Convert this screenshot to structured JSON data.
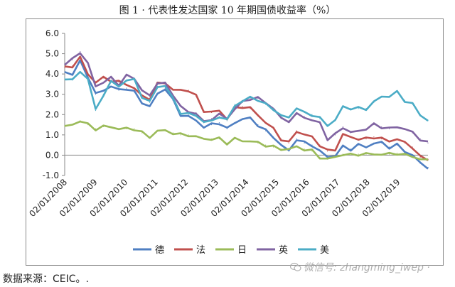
{
  "figure": {
    "title": "图 1 · 代表性发达国家 10 年期国债收益率（%）",
    "source": "数据来源：CEIC。.",
    "watermark": "微信号: zhangming_iwep ·"
  },
  "colors": {
    "德": "#4f7fc2",
    "法": "#c0504d",
    "日": "#9bbb59",
    "英": "#8064a2",
    "美": "#4bacc6"
  },
  "chart_data": {
    "type": "line",
    "title": "",
    "xlabel": "",
    "ylabel": "",
    "ylim": [
      -1.0,
      6.0
    ],
    "y_ticks": [
      "6.0",
      "5.0",
      "4.0",
      "3.0",
      "2.0",
      "1.0",
      "0.0",
      "-1.0"
    ],
    "x_tick_labels": [
      "02/01/2008",
      "02/01/2009",
      "02/01/2010",
      "02/01/2011",
      "02/01/2012",
      "02/01/2013",
      "02/01/2014",
      "02/01/2015",
      "02/01/2016",
      "02/01/2017",
      "02/01/2018",
      "02/01/2019"
    ],
    "x": [
      "2008-01",
      "2008-04",
      "2008-07",
      "2008-10",
      "2009-01",
      "2009-04",
      "2009-07",
      "2009-10",
      "2010-01",
      "2010-04",
      "2010-07",
      "2010-10",
      "2011-01",
      "2011-04",
      "2011-07",
      "2011-10",
      "2012-01",
      "2012-04",
      "2012-07",
      "2012-10",
      "2013-01",
      "2013-04",
      "2013-07",
      "2013-10",
      "2014-01",
      "2014-04",
      "2014-07",
      "2014-10",
      "2015-01",
      "2015-04",
      "2015-07",
      "2015-10",
      "2016-01",
      "2016-04",
      "2016-07",
      "2016-10",
      "2017-01",
      "2017-04",
      "2017-07",
      "2017-10",
      "2018-01",
      "2018-04",
      "2018-07",
      "2018-10",
      "2019-01",
      "2019-04",
      "2019-07",
      "2019-10"
    ],
    "legend": "bottom",
    "grid": false,
    "series": [
      {
        "name": "德",
        "values": [
          4.1,
          4.0,
          4.6,
          3.9,
          3.0,
          3.2,
          3.4,
          3.2,
          3.3,
          3.1,
          2.6,
          2.4,
          3.0,
          3.3,
          2.7,
          2.0,
          1.9,
          1.7,
          1.4,
          1.5,
          1.6,
          1.3,
          1.6,
          1.8,
          1.8,
          1.5,
          1.2,
          0.9,
          0.5,
          0.2,
          0.8,
          0.6,
          0.5,
          0.2,
          -0.1,
          0.0,
          0.4,
          0.3,
          0.5,
          0.4,
          0.6,
          0.6,
          0.4,
          0.5,
          0.2,
          0.0,
          -0.4,
          -0.6
        ]
      },
      {
        "name": "法",
        "values": [
          4.3,
          4.4,
          4.8,
          4.0,
          3.6,
          3.8,
          3.7,
          3.6,
          3.5,
          3.3,
          2.9,
          2.8,
          3.5,
          3.6,
          3.2,
          3.2,
          3.2,
          2.9,
          2.2,
          2.1,
          2.2,
          1.8,
          2.3,
          2.4,
          2.3,
          2.0,
          1.6,
          1.3,
          0.8,
          0.6,
          1.2,
          1.0,
          0.9,
          0.5,
          0.2,
          0.3,
          1.0,
          0.9,
          0.8,
          0.8,
          0.9,
          0.8,
          0.7,
          0.8,
          0.6,
          0.4,
          -0.1,
          -0.2
        ]
      },
      {
        "name": "日",
        "values": [
          1.4,
          1.5,
          1.7,
          1.5,
          1.3,
          1.4,
          1.4,
          1.3,
          1.3,
          1.3,
          1.1,
          0.9,
          1.2,
          1.2,
          1.1,
          1.0,
          1.0,
          0.9,
          0.8,
          0.8,
          0.8,
          0.6,
          0.8,
          0.7,
          0.7,
          0.6,
          0.5,
          0.4,
          0.3,
          0.3,
          0.4,
          0.3,
          0.2,
          -0.1,
          -0.2,
          -0.1,
          0.05,
          0.0,
          0.05,
          0.05,
          0.05,
          0.05,
          0.05,
          0.1,
          0.0,
          -0.05,
          -0.2,
          -0.25
        ]
      },
      {
        "name": "英",
        "values": [
          4.5,
          4.7,
          5.1,
          4.5,
          3.4,
          3.6,
          3.8,
          3.5,
          3.9,
          3.8,
          3.2,
          2.9,
          3.6,
          3.5,
          3.0,
          2.4,
          2.1,
          2.1,
          1.6,
          1.8,
          2.0,
          1.8,
          2.3,
          2.6,
          2.8,
          2.8,
          2.6,
          2.3,
          1.8,
          1.7,
          2.0,
          1.9,
          1.7,
          1.6,
          0.8,
          1.0,
          1.4,
          1.1,
          1.2,
          1.3,
          1.5,
          1.4,
          1.3,
          1.4,
          1.3,
          1.1,
          0.8,
          0.6
        ]
      },
      {
        "name": "美",
        "values": [
          3.8,
          3.7,
          4.1,
          3.8,
          2.2,
          3.0,
          3.6,
          3.4,
          3.7,
          3.7,
          2.9,
          2.6,
          3.4,
          3.4,
          2.8,
          2.1,
          2.0,
          2.0,
          1.6,
          1.7,
          1.9,
          1.7,
          2.5,
          2.6,
          2.9,
          2.7,
          2.5,
          2.3,
          1.9,
          1.9,
          2.3,
          2.1,
          2.0,
          1.8,
          1.5,
          1.7,
          2.4,
          2.3,
          2.3,
          2.3,
          2.6,
          2.9,
          2.9,
          3.1,
          2.7,
          2.5,
          2.0,
          1.7
        ]
      }
    ]
  }
}
